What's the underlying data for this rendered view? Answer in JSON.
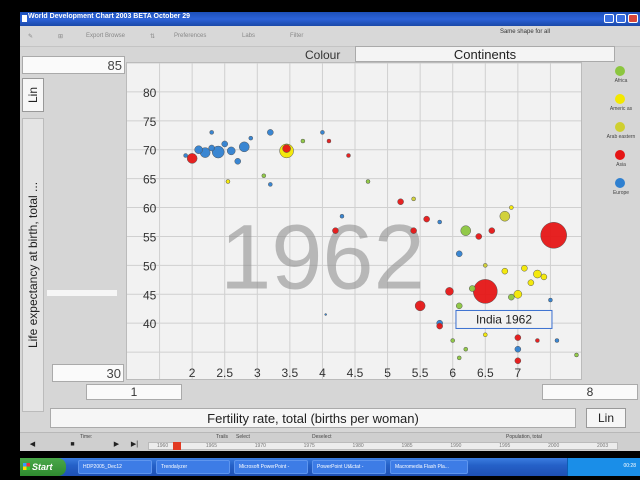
{
  "window": {
    "title": "World Development Chart 2003 BETA October 29"
  },
  "toolbar": {
    "items": [
      "Export Browse",
      "Preferences",
      "Labs",
      "Filter"
    ],
    "same_shape": "Same shape for all"
  },
  "colour": {
    "label": "Colour",
    "value": "Continents"
  },
  "y_axis": {
    "max_value": "85",
    "min_value": "30",
    "scale_button": "Lin",
    "label": "Life expectancy at birth, total ..."
  },
  "x_axis": {
    "min_value": "1",
    "max_value": "8",
    "scale_button": "Lin",
    "label": "Fertility rate, total (births per woman)"
  },
  "legend": {
    "items": [
      {
        "label": "Africa",
        "color": "#8cc63f"
      },
      {
        "label": "Americ as",
        "color": "#f3e800"
      },
      {
        "label": "Arab eastern",
        "color": "#cfcf30"
      },
      {
        "label": "Asia",
        "color": "#e51616"
      },
      {
        "label": "Europe",
        "color": "#2f80d0"
      }
    ]
  },
  "timeline": {
    "time_label": "Time:",
    "trails_label": "Trails",
    "select_label": "Select",
    "deselect_label": "Deselect",
    "size_label": "Population, total",
    "years": [
      "1960",
      "1965",
      "1970",
      "1975",
      "1980",
      "1985",
      "1990",
      "1995",
      "2000",
      "2003"
    ],
    "current_year_fraction": 0.05
  },
  "taskbar": {
    "start": "Start",
    "tasks": [
      "HDP2005_Dec12",
      "Trendalyzer",
      "Microsoft PowerPoint -",
      "PowerPoint Ut&ctat -",
      "Macromedia Flash Pla..."
    ],
    "clock": "00:28"
  },
  "chart_data": {
    "type": "scatter",
    "year": "1962",
    "xlabel": "Fertility rate, total (births per woman)",
    "ylabel": "Life expectancy at birth, total ...",
    "xlim": [
      1,
      8
    ],
    "ylim": [
      30,
      85
    ],
    "xticks": [
      "2",
      "2.5",
      "3",
      "3.5",
      "4",
      "4.5",
      "5",
      "5.5",
      "6",
      "6.5",
      "7"
    ],
    "yticks": [
      "80",
      "75",
      "70",
      "65",
      "60",
      "55",
      "50",
      "45",
      "40"
    ],
    "tooltip": "India 1962",
    "bubbles": [
      {
        "x": 2.0,
        "y": 68.5,
        "r": 5,
        "c": "asia"
      },
      {
        "x": 2.1,
        "y": 70.0,
        "r": 4,
        "c": "europe"
      },
      {
        "x": 2.2,
        "y": 69.5,
        "r": 5,
        "c": "europe"
      },
      {
        "x": 2.3,
        "y": 70.3,
        "r": 3,
        "c": "europe"
      },
      {
        "x": 2.4,
        "y": 69.6,
        "r": 6,
        "c": "europe"
      },
      {
        "x": 2.5,
        "y": 71.0,
        "r": 3,
        "c": "europe"
      },
      {
        "x": 2.6,
        "y": 69.8,
        "r": 4,
        "c": "europe"
      },
      {
        "x": 2.7,
        "y": 68.0,
        "r": 3,
        "c": "europe"
      },
      {
        "x": 2.8,
        "y": 70.5,
        "r": 5,
        "c": "europe"
      },
      {
        "x": 2.9,
        "y": 72.0,
        "r": 2,
        "c": "europe"
      },
      {
        "x": 3.2,
        "y": 73.0,
        "r": 3,
        "c": "europe"
      },
      {
        "x": 1.9,
        "y": 69.0,
        "r": 2,
        "c": "europe"
      },
      {
        "x": 2.3,
        "y": 73.0,
        "r": 2,
        "c": "europe"
      },
      {
        "x": 2.55,
        "y": 64.5,
        "r": 2,
        "c": "americas"
      },
      {
        "x": 3.45,
        "y": 69.8,
        "r": 7,
        "c": "americas"
      },
      {
        "x": 3.45,
        "y": 70.2,
        "r": 4,
        "c": "asia"
      },
      {
        "x": 3.7,
        "y": 71.5,
        "r": 2,
        "c": "africa"
      },
      {
        "x": 4.0,
        "y": 73.0,
        "r": 2,
        "c": "europe"
      },
      {
        "x": 3.1,
        "y": 65.5,
        "r": 2,
        "c": "africa"
      },
      {
        "x": 3.2,
        "y": 64.0,
        "r": 2,
        "c": "europe"
      },
      {
        "x": 4.1,
        "y": 71.5,
        "r": 2,
        "c": "asia"
      },
      {
        "x": 4.4,
        "y": 69.0,
        "r": 2,
        "c": "asia"
      },
      {
        "x": 4.7,
        "y": 64.5,
        "r": 2,
        "c": "africa"
      },
      {
        "x": 4.3,
        "y": 58.5,
        "r": 2,
        "c": "europe"
      },
      {
        "x": 5.2,
        "y": 61.0,
        "r": 3,
        "c": "asia"
      },
      {
        "x": 5.4,
        "y": 61.5,
        "r": 2,
        "c": "arab"
      },
      {
        "x": 5.6,
        "y": 58.0,
        "r": 3,
        "c": "asia"
      },
      {
        "x": 4.2,
        "y": 56.0,
        "r": 3,
        "c": "asia"
      },
      {
        "x": 5.4,
        "y": 56.0,
        "r": 3,
        "c": "asia"
      },
      {
        "x": 5.8,
        "y": 57.5,
        "r": 2,
        "c": "europe"
      },
      {
        "x": 6.2,
        "y": 56.0,
        "r": 5,
        "c": "africa"
      },
      {
        "x": 6.4,
        "y": 55.0,
        "r": 3,
        "c": "asia"
      },
      {
        "x": 6.6,
        "y": 56.0,
        "r": 3,
        "c": "asia"
      },
      {
        "x": 6.8,
        "y": 58.5,
        "r": 5,
        "c": "arab"
      },
      {
        "x": 6.9,
        "y": 60.0,
        "r": 2,
        "c": "americas"
      },
      {
        "x": 7.55,
        "y": 55.2,
        "r": 13,
        "c": "asia"
      },
      {
        "x": 6.1,
        "y": 52.0,
        "r": 3,
        "c": "europe"
      },
      {
        "x": 6.5,
        "y": 50.0,
        "r": 2,
        "c": "arab"
      },
      {
        "x": 6.8,
        "y": 49.0,
        "r": 3,
        "c": "americas"
      },
      {
        "x": 7.1,
        "y": 49.5,
        "r": 3,
        "c": "americas"
      },
      {
        "x": 7.3,
        "y": 48.5,
        "r": 4,
        "c": "americas"
      },
      {
        "x": 7.4,
        "y": 48.0,
        "r": 3,
        "c": "americas"
      },
      {
        "x": 7.2,
        "y": 47.0,
        "r": 3,
        "c": "americas"
      },
      {
        "x": 7.0,
        "y": 45.0,
        "r": 4,
        "c": "americas"
      },
      {
        "x": 6.9,
        "y": 44.5,
        "r": 3,
        "c": "africa"
      },
      {
        "x": 5.5,
        "y": 43.0,
        "r": 5,
        "c": "asia"
      },
      {
        "x": 5.95,
        "y": 45.5,
        "r": 4,
        "c": "asia"
      },
      {
        "x": 6.5,
        "y": 45.5,
        "r": 12,
        "c": "asia"
      },
      {
        "x": 6.3,
        "y": 46.0,
        "r": 3,
        "c": "africa"
      },
      {
        "x": 6.1,
        "y": 43.0,
        "r": 3,
        "c": "africa"
      },
      {
        "x": 5.8,
        "y": 40.0,
        "r": 3,
        "c": "europe"
      },
      {
        "x": 5.8,
        "y": 39.5,
        "r": 3,
        "c": "asia"
      },
      {
        "x": 6.0,
        "y": 37.0,
        "r": 2,
        "c": "africa"
      },
      {
        "x": 6.2,
        "y": 35.5,
        "r": 2,
        "c": "africa"
      },
      {
        "x": 6.1,
        "y": 34.0,
        "r": 2,
        "c": "africa"
      },
      {
        "x": 6.5,
        "y": 38.0,
        "r": 2,
        "c": "americas"
      },
      {
        "x": 7.0,
        "y": 37.5,
        "r": 3,
        "c": "asia"
      },
      {
        "x": 7.0,
        "y": 35.5,
        "r": 3,
        "c": "europe"
      },
      {
        "x": 7.0,
        "y": 33.5,
        "r": 3,
        "c": "asia"
      },
      {
        "x": 7.3,
        "y": 37.0,
        "r": 2,
        "c": "asia"
      },
      {
        "x": 7.6,
        "y": 37.0,
        "r": 2,
        "c": "europe"
      },
      {
        "x": 7.9,
        "y": 34.5,
        "r": 2,
        "c": "africa"
      },
      {
        "x": 7.5,
        "y": 44.0,
        "r": 2,
        "c": "europe"
      },
      {
        "x": 4.05,
        "y": 41.5,
        "r": 1,
        "c": "europe"
      }
    ],
    "colors": {
      "asia": "#e51616",
      "europe": "#2f80d0",
      "americas": "#f3e800",
      "africa": "#8cc63f",
      "arab": "#cfcf30"
    }
  }
}
